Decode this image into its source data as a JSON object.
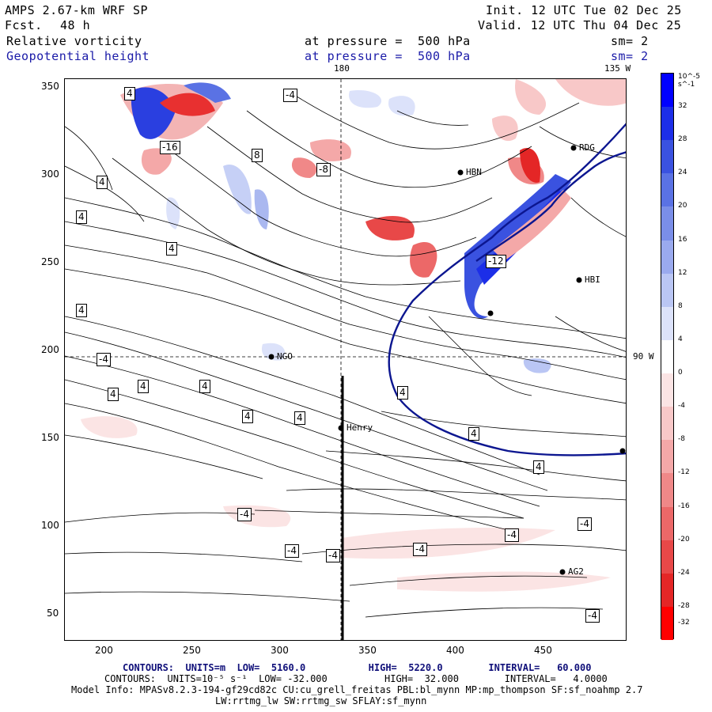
{
  "header": {
    "model": "AMPS 2.67-km WRF SP",
    "fcst_label": "Fcst.",
    "fcst_value": "48 h",
    "init": "Init. 12 UTC Tue 02 Dec 25",
    "valid": "Valid. 12 UTC Thu 04 Dec 25",
    "field1": "Relative vorticity",
    "field2": "Geopotential height",
    "press1": "at pressure =  500 hPa",
    "press2": "at pressure =  500 hPa",
    "sm1": "sm= 2",
    "sm2": "sm= 2"
  },
  "map": {
    "lon_180": "180",
    "lon_135w": "135 W",
    "lon_90w": "90 W",
    "stations": [
      "RDG",
      "HBN",
      "HBI",
      "NGO",
      "Henry",
      "AG2"
    ],
    "contour_labels": [
      "4",
      "-4",
      "8",
      "-8",
      "-12",
      "-16",
      "4",
      "4",
      "4",
      "4",
      "-4",
      "4",
      "4",
      "4",
      "4",
      "4",
      "4",
      "4",
      "4",
      "-4",
      "-4",
      "-4",
      "-4",
      "-4",
      "-4",
      "-4"
    ]
  },
  "axes": {
    "x_ticks": [
      "200",
      "250",
      "300",
      "350",
      "400",
      "450"
    ],
    "y_ticks": [
      "350",
      "300",
      "250",
      "200",
      "150",
      "100",
      "50"
    ]
  },
  "colorbar": {
    "unit": "10^-5 s^-1",
    "labels": [
      "32",
      "28",
      "24",
      "20",
      "16",
      "12",
      "8",
      "4",
      "0",
      "-4",
      "-8",
      "-12",
      "-16",
      "-20",
      "-24",
      "-28",
      "-32"
    ],
    "colors": [
      "#0000ff",
      "#1c2ee8",
      "#3a52e0",
      "#5a72e4",
      "#7a8ee8",
      "#9aaaee",
      "#bac6f4",
      "#dce2fa",
      "#ffffff",
      "#fbe4e4",
      "#f8c8c8",
      "#f4a8a8",
      "#f08888",
      "#ec6868",
      "#e84848",
      "#e42626",
      "#ff0000"
    ]
  },
  "footer": {
    "line1": "CONTOURS:  UNITS=m  LOW=  5160.0           HIGH=  5220.0        INTERVAL=   60.000",
    "line2": "CONTOURS:  UNITS=10⁻⁵ s⁻¹  LOW= -32.000          HIGH=  32.000        INTERVAL=   4.0000",
    "line3": "Model Info: MPASv8.2.3-194-gf29cd82c CU:cu_grell_freitas PBL:bl_mynn MP:mp_thompson SF:sf_noahmp 2.7",
    "line4": "LW:rrtmg_lw SW:rrtmg_sw SFLAY:sf_mynn"
  }
}
